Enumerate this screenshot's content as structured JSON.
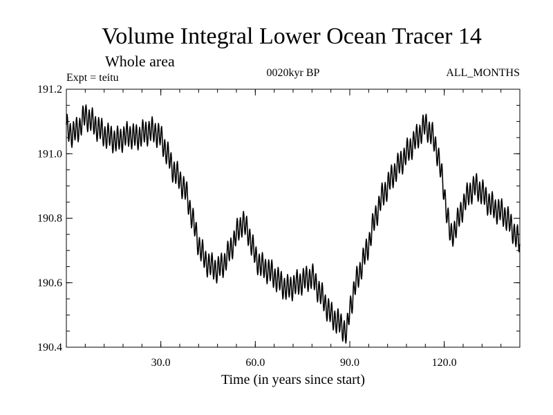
{
  "chart_data": {
    "type": "line",
    "title": "Volume Integral Lower Ocean Tracer 14",
    "subtitle": "Whole area",
    "experiment": "Expt = teitu",
    "period": "0020kyr BP",
    "months": "ALL_MONTHS",
    "xlabel": "Time (in years since start)",
    "ylabel": "",
    "xlim": [
      0,
      144
    ],
    "ylim": [
      190.4,
      191.2
    ],
    "x_ticks": [
      30,
      60,
      90,
      120
    ],
    "x_tick_labels": [
      "30.0",
      "60.0",
      "90.0",
      "120.0"
    ],
    "y_ticks": [
      190.4,
      190.6,
      190.8,
      191.0,
      191.2
    ],
    "y_tick_labels": [
      "190.4",
      "190.6",
      "190.8",
      "191.0",
      "191.2"
    ],
    "series": [
      {
        "name": "Tracer 14",
        "color": "#000000",
        "x": [
          0,
          2,
          4,
          6,
          8,
          10,
          12,
          14,
          16,
          18,
          20,
          22,
          24,
          26,
          28,
          30,
          32,
          34,
          36,
          38,
          40,
          42,
          44,
          46,
          48,
          50,
          52,
          54,
          56,
          58,
          60,
          62,
          64,
          66,
          68,
          70,
          72,
          74,
          76,
          78,
          80,
          82,
          84,
          86,
          88,
          89,
          90,
          92,
          94,
          96,
          98,
          100,
          102,
          104,
          106,
          108,
          110,
          112,
          114,
          116,
          118,
          120,
          122,
          124,
          126,
          128,
          130,
          132,
          134,
          136,
          138,
          140,
          142,
          144
        ],
        "values": [
          191.08,
          191.06,
          191.08,
          191.12,
          191.1,
          191.08,
          191.06,
          191.05,
          191.04,
          191.05,
          191.06,
          191.05,
          191.06,
          191.07,
          191.07,
          191.05,
          191.0,
          190.95,
          190.92,
          190.88,
          190.8,
          190.72,
          190.67,
          190.65,
          190.64,
          190.66,
          190.7,
          190.75,
          190.79,
          190.75,
          190.68,
          190.65,
          190.64,
          190.62,
          190.6,
          190.58,
          190.59,
          190.6,
          190.61,
          190.62,
          190.58,
          190.54,
          190.5,
          190.48,
          190.46,
          190.44,
          190.52,
          190.6,
          190.66,
          190.72,
          190.8,
          190.86,
          190.9,
          190.94,
          190.97,
          191.0,
          191.03,
          191.06,
          191.09,
          191.06,
          191.0,
          190.88,
          190.74,
          190.78,
          190.84,
          190.88,
          190.9,
          190.88,
          190.85,
          190.83,
          190.82,
          190.8,
          190.76,
          190.72
        ]
      }
    ],
    "grid": false
  }
}
